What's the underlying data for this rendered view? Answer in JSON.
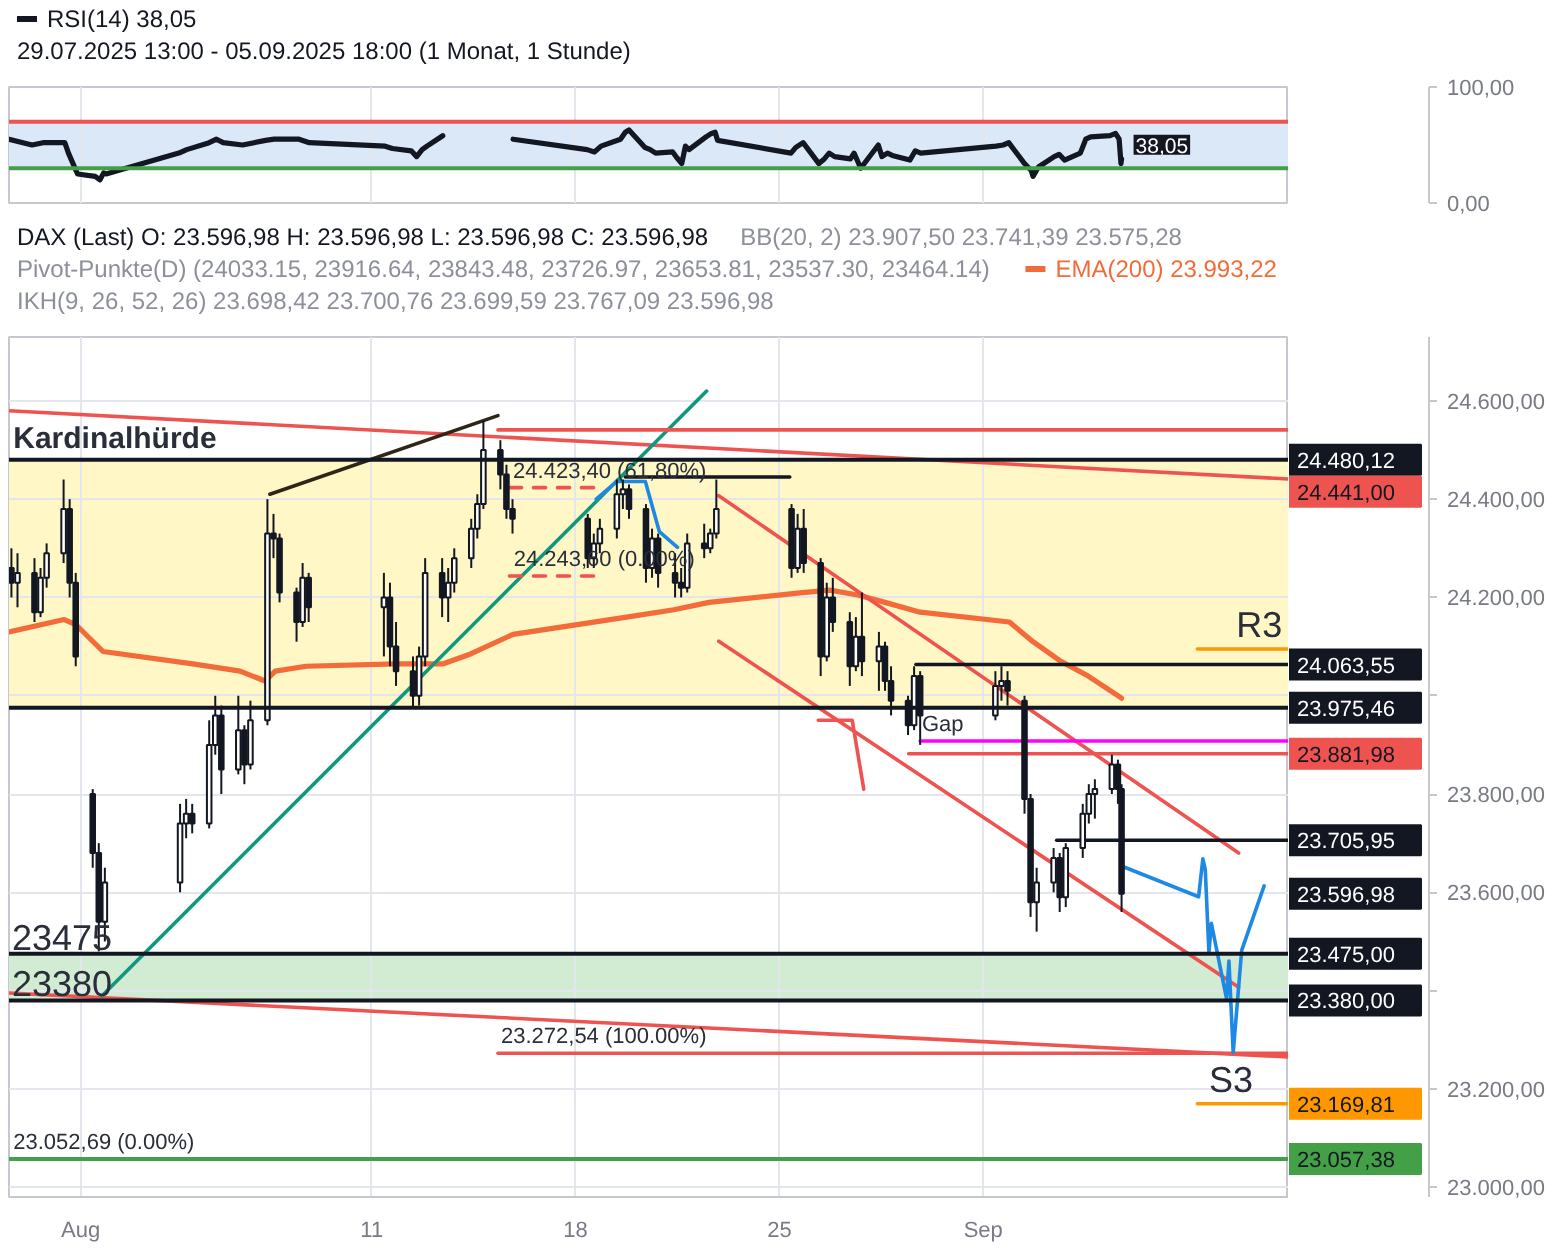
{
  "chart_data": [
    {
      "type": "line",
      "subtitle": "29.07.2025 13:00 - 05.09.2025 18:00 (1 Monat, 1 Stunde)",
      "legend": "top left",
      "series": [
        {
          "name": "RSI(14) 38,05",
          "color": "#131722",
          "x": [
            "2025-07-29T13:00",
            "2025-07-30T08:00",
            "2025-07-30T17:00",
            "2025-07-31T11:00",
            "2025-07-31T14:00",
            "2025-07-31T21:30",
            "2025-08-01T12:00",
            "2025-08-01T16:00",
            "2025-08-01T19:00",
            "2025-08-01T21:00",
            "2025-08-04T09:00",
            "2025-08-04T15:30",
            "2025-08-05T10:00",
            "2025-08-05T16:00",
            "2025-08-05T21:30",
            "2025-08-06T13:30",
            "2025-08-07T08:30",
            "2025-08-07T15:30",
            "2025-08-07T20:00",
            "2025-08-08T12:00",
            "2025-08-08T20:30",
            "2025-08-11T11:00",
            "2025-08-11T17:00",
            "2025-08-12T08:30",
            "2025-08-12T13:00",
            "2025-08-12T17:30",
            "2025-08-12T21:30",
            "2025-08-13T10:30",
            "2025-08-14T15:00",
            "2025-08-15T20:30",
            "2025-08-18T09:30",
            "2025-08-18T15:30",
            "2025-08-18T21:00",
            "2025-08-19T13:00",
            "2025-08-19T17:00",
            "2025-08-19T20:00",
            "2025-08-20T09:00",
            "2025-08-20T13:30",
            "2025-08-20T18:00",
            "2025-08-21T08:00",
            "2025-08-21T11:30",
            "2025-08-21T15:30",
            "2025-08-21T18:30",
            "2025-08-21T21:30",
            "2025-08-22T11:30",
            "2025-08-22T16:00",
            "2025-08-22T19:00",
            "2025-08-22T21:00",
            "2025-08-25T09:30",
            "2025-08-25T13:30",
            "2025-08-25T19:30",
            "2025-08-26T08:30",
            "2025-08-26T13:00",
            "2025-08-26T17:00",
            "2025-08-26T21:30",
            "2025-08-27T10:30",
            "2025-08-27T13:30",
            "2025-08-27T16:30",
            "2025-08-27T19:00",
            "2025-08-28T09:30",
            "2025-08-28T12:30",
            "2025-08-28T17:00",
            "2025-08-28T21:00",
            "2025-08-29T11:30",
            "2025-08-29T16:00",
            "2025-08-29T20:30",
            "2025-09-01T10:30",
            "2025-09-01T16:30",
            "2025-09-01T21:00",
            "2025-09-02T10:00",
            "2025-09-02T15:30",
            "2025-09-02T17:00",
            "2025-09-02T21:30",
            "2025-09-03T10:30",
            "2025-09-03T14:30",
            "2025-09-03T19:00",
            "2025-09-04T08:00",
            "2025-09-04T12:30",
            "2025-09-04T16:30",
            "2025-09-05T08:30",
            "2025-09-05T13:00",
            "2025-09-05T16:00",
            "2025-09-05T17:30",
            "2025-09-05T18:00"
          ],
          "values": [
            55,
            50,
            52,
            52,
            43,
            25,
            23,
            20,
            26,
            25,
            43,
            46,
            52,
            55,
            52,
            50,
            54,
            55,
            55,
            55,
            52,
            49,
            47,
            45,
            40,
            46,
            49,
            58,
            null,
            55,
            46,
            44,
            49,
            55,
            61,
            63,
            48,
            46,
            43,
            44,
            39,
            34,
            49,
            46,
            57,
            60,
            61,
            54,
            43,
            48,
            52,
            34,
            38,
            43,
            40,
            38,
            43,
            36,
            30,
            50,
            40,
            43,
            41,
            37,
            45,
            43,
            49,
            50,
            52,
            34,
            28,
            23,
            31,
            40,
            42,
            37,
            43,
            55,
            57,
            58,
            60,
            55,
            34,
            38.05
          ],
          "value_labels": [
            null,
            null,
            null,
            null,
            null,
            null,
            null,
            null,
            null,
            null,
            null,
            null,
            null,
            null,
            null,
            null,
            null,
            null,
            null,
            null,
            null,
            null,
            null,
            null,
            null,
            null,
            null,
            null,
            null,
            null,
            null,
            null,
            null,
            null,
            null,
            null,
            null,
            null,
            null,
            null,
            null,
            null,
            null,
            null,
            null,
            null,
            null,
            null,
            null,
            null,
            null,
            null,
            null,
            null,
            null,
            null,
            null,
            null,
            null,
            null,
            null,
            null,
            null,
            null,
            null,
            null,
            null,
            null,
            null,
            null,
            null,
            null,
            null,
            null,
            null,
            null,
            null,
            null,
            null,
            null,
            null,
            null,
            null,
            "38,05"
          ]
        }
      ],
      "xlim": [
        "2025-07-29T13:00",
        "2025-09-11T12:00"
      ],
      "xticks": [
        {
          "value": "2025-08",
          "label": null
        },
        {
          "value": "2025-08-11",
          "label": null
        },
        {
          "value": "2025-08-18",
          "label": null
        },
        {
          "value": "2025-08-25",
          "label": null
        },
        {
          "value": "2025-09",
          "label": null
        }
      ],
      "ylim": [
        0,
        100
      ],
      "yticks": [
        {
          "value": 100,
          "label": "100,00"
        },
        {
          "value": 0,
          "label": "0,00"
        }
      ],
      "tick_labels": "y",
      "grid": true,
      "ref_lines": [
        {
          "axis": "y",
          "value": 70,
          "color": "#ef5350"
        },
        {
          "axis": "y",
          "value": 30,
          "color": "#43a047"
        }
      ],
      "bands": [
        {
          "axis": "y",
          "from": 30,
          "to": 70,
          "color": "#dbe8f7"
        }
      ]
    },
    {
      "type": "candlestick",
      "title": "DAX (Last) O: 23.596,98 H: 23.596,98 L: 23.596,98 C: 23.596,98",
      "legend": "top right",
      "annotations": [
        "BB(20, 2) 23.907,50 23.741,39 23.575,28",
        "Pivot-Punkte(D) (24033.15, 23916.64, 23843.48, 23726.97, 23653.81, 23537.30, 23464.14)",
        "IKH(9, 26, 52, 26) 23.698,42 23.700,76 23.699,59 23.767,09 23.596,98",
        {
          "text": "Kardinalhürde",
          "x": "2025-07-29T16:30",
          "y": 24480.12
        },
        {
          "text": "24.423,40 (61,80%)",
          "x": "2025-08-15T20:30",
          "y": 24423.4
        },
        {
          "text": "24.243,60 (0.00%)",
          "x": "2025-08-15T21:00",
          "y": 24243.6
        },
        {
          "text": "R3",
          "x": "2025-09-09T16:30",
          "y": 24095
        },
        {
          "text": "Gap",
          "x": "2025-08-29T21:30",
          "y": 23908
        },
        {
          "text": "23475",
          "x": "2025-07-29T15:30",
          "y": 23475
        },
        {
          "text": "23380",
          "x": "2025-07-29T15:30",
          "y": 23380
        },
        {
          "text": "23.272,54 (100.00%)",
          "x": "2025-08-15T10:30",
          "y": 23272.54
        },
        {
          "text": "S3",
          "x": "2025-09-08T18:00",
          "y": 23169.81
        },
        {
          "text": "23.052,69 (0.00%)",
          "x": "2025-07-29T16:30",
          "y": 23057.38
        }
      ],
      "x": [
        "2025-07-29T15:00",
        "2025-07-29T20:00",
        "2025-07-30T10:00",
        "2025-07-30T15:00",
        "2025-07-30T20:00",
        "2025-07-31T10:00",
        "2025-07-31T15:00",
        "2025-07-31T20:00",
        "2025-08-01T10:00",
        "2025-08-01T15:00",
        "2025-08-01T20:00",
        "2025-08-04T10:00",
        "2025-08-04T15:00",
        "2025-08-04T20:00",
        "2025-08-05T10:00",
        "2025-08-05T15:00",
        "2025-08-05T20:00",
        "2025-08-06T10:00",
        "2025-08-06T15:00",
        "2025-08-06T20:00",
        "2025-08-07T10:00",
        "2025-08-07T15:00",
        "2025-08-07T20:00",
        "2025-08-08T10:00",
        "2025-08-08T15:00",
        "2025-08-08T20:00",
        "2025-08-11T10:00",
        "2025-08-11T15:00",
        "2025-08-11T20:00",
        "2025-08-12T10:00",
        "2025-08-12T15:00",
        "2025-08-12T20:00",
        "2025-08-13T10:00",
        "2025-08-13T15:00",
        "2025-08-13T20:00",
        "2025-08-14T10:00",
        "2025-08-14T15:00",
        "2025-08-14T20:00",
        "2025-08-15T10:00",
        "2025-08-15T15:00",
        "2025-08-15T20:00",
        "2025-08-18T10:00",
        "2025-08-18T15:00",
        "2025-08-18T20:00",
        "2025-08-19T10:00",
        "2025-08-19T15:00",
        "2025-08-19T20:00",
        "2025-08-20T10:00",
        "2025-08-20T15:00",
        "2025-08-20T20:00",
        "2025-08-21T10:00",
        "2025-08-21T15:00",
        "2025-08-21T20:00",
        "2025-08-22T10:00",
        "2025-08-22T15:00",
        "2025-08-22T20:00",
        "2025-08-25T10:00",
        "2025-08-25T15:00",
        "2025-08-25T20:00",
        "2025-08-26T10:00",
        "2025-08-26T15:00",
        "2025-08-26T20:00",
        "2025-08-27T10:00",
        "2025-08-27T15:00",
        "2025-08-27T20:00",
        "2025-08-28T10:00",
        "2025-08-28T15:00",
        "2025-08-28T20:00",
        "2025-08-29T10:00",
        "2025-08-29T15:00",
        "2025-08-29T20:00",
        "2025-09-01T10:00",
        "2025-09-01T15:00",
        "2025-09-01T20:00",
        "2025-09-02T10:00",
        "2025-09-02T15:00",
        "2025-09-02T20:00",
        "2025-09-03T10:00",
        "2025-09-03T15:00",
        "2025-09-03T20:00",
        "2025-09-04T10:00",
        "2025-09-04T15:00",
        "2025-09-04T20:00",
        "2025-09-05T10:00",
        "2025-09-05T15:00",
        "2025-09-05T18:00"
      ],
      "ohlc": [
        [
          24260,
          24300,
          24200,
          24230
        ],
        [
          24230,
          24290,
          24180,
          24250
        ],
        [
          24250,
          24280,
          24150,
          24170
        ],
        [
          24170,
          24260,
          24160,
          24240
        ],
        [
          24240,
          24310,
          24220,
          24290
        ],
        [
          24290,
          24440,
          24270,
          24380
        ],
        [
          24380,
          24400,
          24200,
          24230
        ],
        [
          24230,
          24250,
          24060,
          24080
        ],
        [
          23800,
          23810,
          23650,
          23680
        ],
        [
          23680,
          23700,
          23480,
          23540
        ],
        [
          23540,
          23650,
          23500,
          23620
        ],
        [
          23620,
          23780,
          23600,
          23740
        ],
        [
          23740,
          23790,
          23710,
          23760
        ],
        [
          23760,
          23780,
          23720,
          23740
        ],
        [
          23740,
          23950,
          23730,
          23900
        ],
        [
          23900,
          24000,
          23880,
          23960
        ],
        [
          23960,
          23980,
          23800,
          23850
        ],
        [
          23850,
          24000,
          23840,
          23930
        ],
        [
          23930,
          23940,
          23820,
          23860
        ],
        [
          23860,
          23990,
          23850,
          23950
        ],
        [
          23950,
          24400,
          23940,
          24330
        ],
        [
          24330,
          24370,
          24280,
          24320
        ],
        [
          24320,
          24330,
          24190,
          24210
        ],
        [
          24210,
          24220,
          24110,
          24150
        ],
        [
          24150,
          24270,
          24140,
          24240
        ],
        [
          24240,
          24250,
          24150,
          24180
        ],
        [
          24180,
          24250,
          24080,
          24200
        ],
        [
          24200,
          24230,
          24060,
          24100
        ],
        [
          24100,
          24150,
          24020,
          24050
        ],
        [
          24050,
          24080,
          23975,
          24000
        ],
        [
          24000,
          24100,
          23980,
          24080
        ],
        [
          24080,
          24280,
          24060,
          24250
        ],
        [
          24250,
          24280,
          24160,
          24200
        ],
        [
          24200,
          24260,
          24150,
          24230
        ],
        [
          24230,
          24300,
          24210,
          24280
        ],
        [
          24280,
          24360,
          24260,
          24340
        ],
        [
          24340,
          24410,
          24320,
          24390
        ],
        [
          24390,
          24560,
          24380,
          24500
        ],
        [
          24500,
          24520,
          24420,
          24450
        ],
        [
          24450,
          24470,
          24360,
          24380
        ],
        [
          24380,
          24400,
          24330,
          24360
        ],
        [
          24360,
          24370,
          24260,
          24280
        ],
        [
          24280,
          24330,
          24260,
          24310
        ],
        [
          24310,
          24360,
          24290,
          24340
        ],
        [
          24340,
          24440,
          24320,
          24410
        ],
        [
          24410,
          24440,
          24380,
          24420
        ],
        [
          24420,
          24430,
          24360,
          24380
        ],
        [
          24380,
          24390,
          24230,
          24260
        ],
        [
          24260,
          24340,
          24240,
          24320
        ],
        [
          24320,
          24330,
          24220,
          24250
        ],
        [
          24250,
          24290,
          24200,
          24230
        ],
        [
          24230,
          24260,
          24200,
          24220
        ],
        [
          24220,
          24330,
          24210,
          24310
        ],
        [
          24310,
          24350,
          24280,
          24300
        ],
        [
          24300,
          24340,
          24290,
          24330
        ],
        [
          24330,
          24440,
          24320,
          24380
        ],
        [
          24380,
          24390,
          24240,
          24260
        ],
        [
          24260,
          24370,
          24250,
          24340
        ],
        [
          24340,
          24380,
          24250,
          24270
        ],
        [
          24270,
          24280,
          24040,
          24080
        ],
        [
          24080,
          24230,
          24070,
          24200
        ],
        [
          24200,
          24240,
          24130,
          24150
        ],
        [
          24150,
          24170,
          24020,
          24060
        ],
        [
          24060,
          24160,
          24050,
          24120
        ],
        [
          24120,
          24210,
          24040,
          24070
        ],
        [
          24070,
          24130,
          24010,
          24100
        ],
        [
          24100,
          24110,
          24010,
          24030
        ],
        [
          24030,
          24060,
          23960,
          23990
        ],
        [
          23990,
          24000,
          23920,
          23940
        ],
        [
          23940,
          24060,
          23930,
          24040
        ],
        [
          24040,
          24050,
          23900,
          23960
        ],
        [
          23960,
          24050,
          23950,
          24020
        ],
        [
          24020,
          24060,
          23990,
          24030
        ],
        [
          24030,
          24050,
          23980,
          24010
        ],
        [
          23990,
          24000,
          23760,
          23790
        ],
        [
          23790,
          23800,
          23550,
          23580
        ],
        [
          23580,
          23650,
          23520,
          23620
        ],
        [
          23620,
          23690,
          23600,
          23670
        ],
        [
          23670,
          23680,
          23560,
          23590
        ],
        [
          23590,
          23700,
          23570,
          23690
        ],
        [
          23690,
          23780,
          23670,
          23760
        ],
        [
          23760,
          23820,
          23740,
          23800
        ],
        [
          23800,
          23830,
          23750,
          23810
        ],
        [
          23810,
          23880,
          23800,
          23860
        ],
        [
          23860,
          23870,
          23780,
          23810
        ],
        [
          23810,
          23820,
          23560,
          23596.98
        ]
      ],
      "value_labels": [
        null,
        null,
        null,
        null,
        null,
        null,
        null,
        null,
        null,
        null,
        null,
        null,
        null,
        null,
        null,
        null,
        null,
        null,
        null,
        null,
        null,
        null,
        null,
        null,
        null,
        null,
        null,
        null,
        null,
        null,
        null,
        null,
        null,
        null,
        null,
        null,
        null,
        null,
        null,
        null,
        null,
        null,
        null,
        null,
        null,
        null,
        null,
        null,
        null,
        null,
        null,
        null,
        null,
        null,
        null,
        null,
        null,
        null,
        null,
        null,
        null,
        null,
        null,
        null,
        null,
        null,
        null,
        null,
        null,
        null,
        null,
        null,
        null,
        null,
        null,
        null,
        null,
        null,
        null,
        null,
        null,
        null,
        null,
        null,
        null,
        "23.596,98"
      ],
      "series": [
        {
          "type": "line",
          "name": "EMA(200) 23.993,22",
          "color": "#f26b38",
          "x": [
            "2025-07-29T13:00",
            "2025-07-31T10:30",
            "2025-07-31T20:00",
            "2025-08-01T18:30",
            "2025-08-04T20:30",
            "2025-08-06T11:30",
            "2025-08-07T08:00",
            "2025-08-07T16:30",
            "2025-08-08T18:00",
            "2025-08-11T20:00",
            "2025-08-13T11:00",
            "2025-08-14T09:30",
            "2025-08-15T20:30",
            "2025-08-19T18:00",
            "2025-08-21T09:00",
            "2025-08-22T14:00",
            "2025-08-25T19:00",
            "2025-08-26T17:30",
            "2025-08-27T16:30",
            "2025-08-28T15:00",
            "2025-08-29T20:00",
            "2025-09-01T21:30",
            "2025-09-02T17:00",
            "2025-09-03T16:00",
            "2025-09-04T14:30",
            "2025-09-05T18:00"
          ],
          "values": [
            24130,
            24155,
            24145,
            24090,
            24065,
            24050,
            24030,
            24050,
            24060,
            24065,
            24065,
            24085,
            24125,
            24160,
            24175,
            24190,
            24210,
            24215,
            24205,
            24190,
            24170,
            24150,
            24110,
            24070,
            24040,
            23995
          ]
        },
        {
          "type": "line",
          "color": "#ef5350",
          "x": [
            "2025-07-29T13:00",
            "2025-09-11T12:00"
          ],
          "values": [
            24580,
            24441
          ],
          "value_labels": [
            null,
            "24.441,00"
          ]
        },
        {
          "type": "line",
          "color": "#ef5350",
          "x": [
            "2025-07-29T13:00",
            "2025-09-11T12:00"
          ],
          "values": [
            23395,
            23265
          ]
        },
        {
          "type": "line",
          "color": "#12977f",
          "x": [
            "2025-08-01T17:30",
            "2025-08-22T12:00"
          ],
          "values": [
            23389,
            24620
          ]
        },
        {
          "type": "line",
          "color": "#2e2718",
          "x": [
            "2025-08-07T12:00",
            "2025-08-15T08:00"
          ],
          "values": [
            24410,
            24570
          ]
        },
        {
          "type": "line",
          "color": "#131722",
          "x": [
            "2025-08-19T17:00",
            "2025-08-25T08:30"
          ],
          "values": [
            24445,
            24445
          ]
        },
        {
          "type": "line",
          "color": "#ef5350",
          "x": [
            "2025-08-22T22:00",
            "2025-09-09T18:30"
          ],
          "values": [
            24407,
            23680
          ]
        },
        {
          "type": "line",
          "color": "#ef5350",
          "x": [
            "2025-08-22T22:00",
            "2025-09-09T18:30"
          ],
          "values": [
            24111,
            23407
          ]
        },
        {
          "type": "line",
          "color": "#ef5350",
          "x": [
            "2025-08-15T08:00",
            "2025-09-11T12:00"
          ],
          "values": [
            24541,
            24541
          ]
        },
        {
          "type": "line",
          "color": "#ef5350",
          "line_style": "dashed",
          "x": [
            "2025-08-15T17:30",
            "2025-08-18T16:30"
          ],
          "values": [
            24423.4,
            24423.4
          ]
        },
        {
          "type": "line",
          "color": "#ef5350",
          "line_style": "dashed",
          "x": [
            "2025-08-15T17:30",
            "2025-08-18T17:00"
          ],
          "values": [
            24243.6,
            24243.6
          ]
        },
        {
          "type": "line",
          "color": "#ef5350",
          "x": [
            "2025-08-15T08:00",
            "2025-09-11T12:00"
          ],
          "values": [
            23272.54,
            23272.54
          ]
        },
        {
          "type": "line",
          "color": "#131722",
          "x": [
            "2025-08-29T16:30",
            "2025-09-11T12:00"
          ],
          "values": [
            24063.55,
            24063.55
          ],
          "value_labels": [
            null,
            "24.063,55"
          ]
        },
        {
          "type": "line",
          "color": "#ff9800",
          "x": [
            "2025-09-08T08:30",
            "2025-09-11T12:00"
          ],
          "values": [
            24095,
            24095
          ]
        },
        {
          "type": "line",
          "color": "#ef5350",
          "x": [
            "2025-08-29T10:30",
            "2025-09-11T12:00"
          ],
          "values": [
            23881.98,
            23881.98
          ],
          "value_labels": [
            null,
            "23.881,98"
          ]
        },
        {
          "type": "line",
          "color": "#ff00ff",
          "x": [
            "2025-08-29T20:00",
            "2025-09-11T12:00"
          ],
          "values": [
            23908,
            23908
          ]
        },
        {
          "type": "line",
          "color": "#131722",
          "x": [
            "2025-09-03T12:30",
            "2025-09-11T12:00"
          ],
          "values": [
            23705.95,
            23705.95
          ],
          "value_labels": [
            null,
            "23.705,95"
          ]
        },
        {
          "type": "line",
          "color": "#ff9800",
          "x": [
            "2025-09-08T08:30",
            "2025-09-11T12:00"
          ],
          "values": [
            23169.81,
            23169.81
          ],
          "value_labels": [
            null,
            "23.169,81"
          ]
        },
        {
          "type": "line",
          "color": "#1e88e5",
          "x": [
            "2025-08-18T17:00",
            "2025-08-19T10:00",
            "2025-08-20T09:30",
            "2025-08-20T21:00",
            "2025-08-21T12:00"
          ],
          "values": [
            24400,
            24436,
            24436,
            24334,
            24302
          ]
        },
        {
          "type": "line",
          "color": "#1e88e5",
          "x": [
            "2025-09-05T20:30",
            "2025-09-08T09:30",
            "2025-09-08T13:00",
            "2025-09-08T15:00",
            "2025-09-08T18:00",
            "2025-09-08T20:00",
            "2025-09-09T08:30",
            "2025-09-09T10:30",
            "2025-09-09T14:00",
            "2025-09-09T21:00",
            "2025-09-10T15:30"
          ],
          "values": [
            23651,
            23591,
            23668,
            23646,
            23477,
            23537,
            23384,
            23460,
            23274,
            23482,
            23613
          ]
        },
        {
          "type": "line",
          "color": "#ef5350",
          "x": [
            "2025-08-26T08:00",
            "2025-08-27T12:00",
            "2025-08-27T21:30"
          ],
          "values": [
            23950,
            23950,
            23810
          ]
        }
      ],
      "xlim": [
        "2025-07-29T13:00",
        "2025-09-11T12:00"
      ],
      "xticks": [
        {
          "value": "2025-08",
          "label": "Aug"
        },
        {
          "value": "2025-08-11",
          "label": "11"
        },
        {
          "value": "2025-08-18",
          "label": "18"
        },
        {
          "value": "2025-08-25",
          "label": "25"
        },
        {
          "value": "2025-09",
          "label": "Sep"
        }
      ],
      "ylim": [
        22980,
        24730
      ],
      "yticks": [
        {
          "value": 23000,
          "label": "23.000,00"
        },
        {
          "value": 23200,
          "label": "23.200,00"
        },
        {
          "value": 23400,
          "label": null
        },
        {
          "value": 23600,
          "label": "23.600,00"
        },
        {
          "value": 23800,
          "label": "23.800,00"
        },
        {
          "value": 24000,
          "label": null
        },
        {
          "value": 24200,
          "label": "24.200,00"
        },
        {
          "value": 24400,
          "label": "24.400,00"
        },
        {
          "value": 24600,
          "label": "24.600,00"
        }
      ],
      "grid": true,
      "ref_lines": [
        {
          "axis": "y",
          "value": 24480.12,
          "label": "24.480,12",
          "color": "#131722"
        },
        {
          "axis": "y",
          "value": 23975.46,
          "label": "23.975,46",
          "color": "#131722"
        },
        {
          "axis": "y",
          "value": 23475.0,
          "label": "23.475,00",
          "color": "#131722"
        },
        {
          "axis": "y",
          "value": 23380.0,
          "label": "23.380,00",
          "color": "#131722"
        },
        {
          "axis": "y",
          "value": 23057.38,
          "label": "23.057,38",
          "color": "#43a047"
        }
      ],
      "bands": [
        {
          "axis": "y",
          "from": 23975.46,
          "to": 24480.12,
          "color": "#fff7c6"
        },
        {
          "axis": "y",
          "from": 23380,
          "to": 23475,
          "color": "#d1ecd3"
        }
      ]
    }
  ]
}
